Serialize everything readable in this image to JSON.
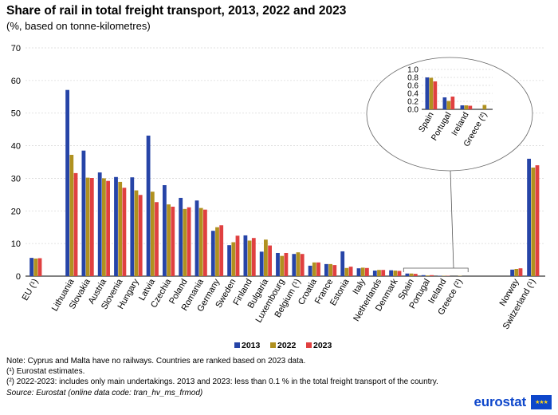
{
  "chart_data": {
    "type": "bar",
    "title": "Share of rail in total freight transport, 2013, 2022 and 2023",
    "subtitle": "(%, based on tonne-kilometres)",
    "ylim": [
      0,
      70
    ],
    "yticks": [
      0,
      10,
      20,
      30,
      40,
      50,
      60,
      70
    ],
    "categories": [
      "EU (¹)",
      "Lithuania",
      "Slovakia",
      "Austria",
      "Slovenia",
      "Hungary",
      "Latvia",
      "Czechia",
      "Poland",
      "Romania",
      "Germany",
      "Sweden",
      "Finland",
      "Bulgaria",
      "Luxembourg",
      "Belgium (¹)",
      "Croatia",
      "France",
      "Estonia",
      "Italy",
      "Netherlands",
      "Denmark",
      "Spain",
      "Portugal",
      "Ireland",
      "Greece (²)",
      "Norway",
      "Switzerland (¹)"
    ],
    "series": [
      {
        "name": "2013",
        "color": "#2644a7",
        "values": [
          5.6,
          57.1,
          38.5,
          31.8,
          30.4,
          30.3,
          43.1,
          27.9,
          24.0,
          23.2,
          13.9,
          9.5,
          12.5,
          7.5,
          7.1,
          6.8,
          3.2,
          3.7,
          7.6,
          2.4,
          1.7,
          1.8,
          0.8,
          0.3,
          0.1,
          0.0,
          2.0,
          36.0
        ]
      },
      {
        "name": "2022",
        "color": "#b09120",
        "values": [
          5.4,
          37.2,
          30.2,
          30.0,
          28.9,
          26.3,
          25.9,
          22.0,
          20.6,
          20.9,
          15.0,
          10.4,
          10.9,
          11.2,
          6.2,
          7.3,
          4.2,
          3.7,
          2.5,
          2.6,
          1.9,
          1.7,
          0.8,
          0.2,
          0.1,
          0.1,
          2.2,
          33.3
        ]
      },
      {
        "name": "2023",
        "color": "#e04040",
        "values": [
          5.5,
          31.6,
          30.1,
          29.2,
          27.1,
          24.9,
          22.7,
          21.3,
          21.1,
          20.4,
          15.6,
          12.4,
          11.7,
          9.4,
          7.1,
          6.8,
          4.2,
          3.4,
          2.9,
          2.5,
          1.9,
          1.6,
          0.7,
          0.3,
          0.1,
          0.0,
          2.4,
          34.0
        ]
      }
    ],
    "inset": {
      "categories": [
        "Spain",
        "Portugal",
        "Ireland",
        "Greece (²)"
      ],
      "ylim": [
        0,
        1.0
      ],
      "yticks": [
        "0.0",
        "0.2",
        "0.4",
        "0.6",
        "0.8",
        "1.0"
      ],
      "series": [
        {
          "name": "2013",
          "values": [
            0.8,
            0.3,
            0.1,
            0.0
          ]
        },
        {
          "name": "2022",
          "values": [
            0.79,
            0.21,
            0.1,
            0.11
          ]
        },
        {
          "name": "2023",
          "values": [
            0.7,
            0.32,
            0.09,
            0.0
          ]
        }
      ]
    },
    "legend": [
      "2013",
      "2022",
      "2023"
    ],
    "legend_position": "bottom-right",
    "grid": true
  },
  "notes": {
    "line1": "Note: Cyprus and Malta have no railways. Countries are ranked based on 2023 data.",
    "line2": "(¹) Eurostat estimates.",
    "line3": "(²) 2022-2023: includes only main undertakings. 2013 and 2023: less than 0.1 % in the total freight transport of the country.",
    "source": "Source: Eurostat (online data code: tran_hv_ms_frmod)"
  },
  "brand": {
    "name": "eurostat",
    "color": "#0e47cb"
  }
}
